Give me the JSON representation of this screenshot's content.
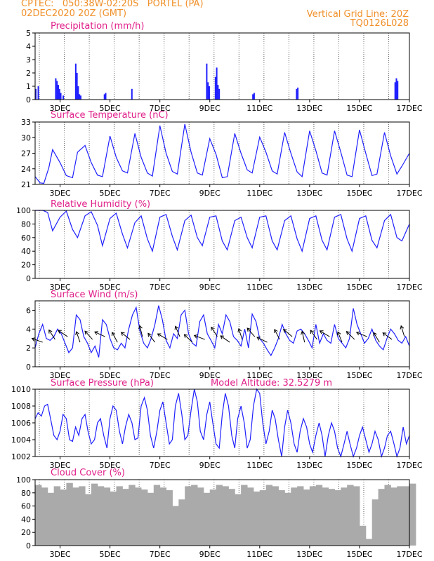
{
  "header": {
    "line1_left": "CPTEC:   050:38W-02:20S   PORTEL (PA)",
    "line2_left": "02DEC2020 20Z (GMT)",
    "line1_right": "Vertical Grid Line: 20Z",
    "line2_right": "TQ0126L028"
  },
  "colors": {
    "header": "#f0902a",
    "title": "#e0208a",
    "series": "#2020ff",
    "cloud": "#aaaaaa",
    "wind_arrow": "#000000"
  },
  "chart_data": [
    {
      "type": "bar",
      "title": "Precipitation (mm/h)",
      "ylim": [
        0,
        5
      ],
      "yticks": [
        "0",
        "1",
        "2",
        "3",
        "4",
        "5"
      ],
      "xticks": [
        "3DEC",
        "5DEC",
        "7DEC",
        "9DEC",
        "11DEC",
        "13DEC",
        "15DEC",
        "17DEC"
      ],
      "x_day_offsets": [
        0.17,
        1.17,
        2.17,
        3.17,
        4.17,
        5.17,
        6.17,
        7.17,
        8.17,
        9.17,
        10.17,
        11.17,
        12.17,
        13.17,
        14.17
      ],
      "x": [
        0.0,
        0.1,
        0.8,
        0.85,
        0.9,
        0.95,
        1.0,
        1.1,
        1.6,
        1.65,
        1.7,
        1.75,
        1.8,
        2.75,
        2.8,
        3.85,
        6.85,
        6.9,
        6.95,
        7.2,
        7.25,
        7.3,
        7.35,
        8.7,
        8.75,
        10.45,
        10.5,
        14.4,
        14.45,
        14.5
      ],
      "values": [
        0.8,
        1.0,
        1.6,
        1.4,
        1.1,
        0.8,
        0.5,
        0.3,
        2.7,
        2.0,
        1.0,
        0.4,
        0.3,
        0.4,
        0.5,
        0.8,
        2.7,
        1.3,
        1.0,
        1.7,
        2.4,
        1.1,
        0.8,
        0.4,
        0.5,
        0.8,
        0.9,
        1.3,
        1.6,
        1.4
      ]
    },
    {
      "type": "line",
      "title": "Surface Temperature (nC)",
      "ylim": [
        21,
        33
      ],
      "yticks": [
        "21",
        "24",
        "27",
        "30",
        "33"
      ],
      "xticks": [
        "3DEC",
        "5DEC",
        "7DEC",
        "9DEC",
        "11DEC",
        "13DEC",
        "15DEC",
        "17DEC"
      ],
      "x_day_offsets": [
        0.17,
        1.17,
        2.17,
        3.17,
        4.17,
        5.17,
        6.17,
        7.17,
        8.17,
        9.17,
        10.17,
        11.17,
        12.17,
        13.17,
        14.17
      ],
      "x": [
        0,
        0.2,
        0.35,
        0.55,
        0.7,
        1.0,
        1.25,
        1.5,
        1.7,
        2.0,
        2.25,
        2.5,
        2.7,
        3.0,
        3.25,
        3.5,
        3.7,
        4.0,
        4.25,
        4.5,
        4.7,
        5.0,
        5.25,
        5.5,
        5.7,
        6.0,
        6.25,
        6.5,
        6.7,
        7.0,
        7.25,
        7.5,
        7.7,
        8.0,
        8.25,
        8.5,
        8.7,
        9.0,
        9.25,
        9.5,
        9.7,
        10.0,
        10.25,
        10.5,
        10.7,
        11.0,
        11.25,
        11.5,
        11.7,
        12.0,
        12.25,
        12.5,
        12.7,
        13.0,
        13.25,
        13.5,
        13.7,
        14.0,
        14.25,
        14.5,
        14.7,
        15.0
      ],
      "values": [
        22.5,
        21.3,
        21.2,
        24.2,
        27.7,
        25.2,
        22.7,
        22.3,
        27.2,
        28.5,
        25.2,
        22.8,
        22.5,
        30.3,
        26.2,
        23.6,
        23.2,
        30.8,
        26.2,
        23.2,
        22.6,
        32.3,
        27.0,
        23.5,
        23.0,
        32.6,
        27.2,
        23.2,
        22.8,
        29.8,
        26.8,
        22.3,
        22.5,
        30.8,
        27.0,
        23.8,
        23.2,
        30.1,
        27.2,
        23.6,
        23.0,
        31.0,
        27.0,
        23.4,
        22.5,
        31.3,
        27.5,
        23.2,
        22.8,
        31.3,
        27.2,
        22.8,
        22.5,
        31.5,
        27.0,
        22.7,
        23.0,
        31.0,
        26.5,
        23.0,
        24.5,
        27.0
      ]
    },
    {
      "type": "line",
      "title": "Relative Humidity (%)",
      "ylim": [
        0,
        100
      ],
      "yticks": [
        "0",
        "20",
        "40",
        "60",
        "80",
        "100"
      ],
      "xticks": [
        "3DEC",
        "5DEC",
        "7DEC",
        "9DEC",
        "11DEC",
        "13DEC",
        "15DEC",
        "17DEC"
      ],
      "x_day_offsets": [
        0.17,
        1.17,
        2.17,
        3.17,
        4.17,
        5.17,
        6.17,
        7.17,
        8.17,
        9.17,
        10.17,
        11.17,
        12.17,
        13.17,
        14.17
      ],
      "x": [
        0,
        0.3,
        0.5,
        0.7,
        1.0,
        1.25,
        1.5,
        1.7,
        2.0,
        2.25,
        2.5,
        2.7,
        3.0,
        3.25,
        3.5,
        3.7,
        4.0,
        4.25,
        4.5,
        4.7,
        5.0,
        5.25,
        5.5,
        5.7,
        6.0,
        6.25,
        6.5,
        6.7,
        7.0,
        7.25,
        7.5,
        7.7,
        8.0,
        8.25,
        8.5,
        8.7,
        9.0,
        9.25,
        9.5,
        9.7,
        10.0,
        10.25,
        10.5,
        10.7,
        11.0,
        11.25,
        11.5,
        11.7,
        12.0,
        12.25,
        12.5,
        12.7,
        13.0,
        13.25,
        13.5,
        13.7,
        14.0,
        14.25,
        14.5,
        14.7,
        15.0
      ],
      "values": [
        100,
        100,
        97,
        70,
        90,
        99,
        72,
        60,
        92,
        98,
        78,
        48,
        88,
        96,
        65,
        45,
        82,
        92,
        58,
        40,
        90,
        94,
        62,
        42,
        85,
        93,
        60,
        48,
        90,
        92,
        55,
        42,
        85,
        90,
        60,
        45,
        90,
        92,
        55,
        42,
        85,
        92,
        58,
        40,
        88,
        92,
        56,
        42,
        90,
        94,
        58,
        40,
        88,
        92,
        56,
        45,
        85,
        94,
        60,
        55,
        80
      ]
    },
    {
      "type": "line",
      "title": "Surface Wind (m/s)",
      "ylim": [
        0,
        7
      ],
      "yticks": [
        "0",
        "2",
        "4",
        "6"
      ],
      "xticks": [
        "3DEC",
        "5DEC",
        "7DEC",
        "9DEC",
        "11DEC",
        "13DEC",
        "15DEC",
        "17DEC"
      ],
      "x_day_offsets": [
        0.17,
        1.17,
        2.17,
        3.17,
        4.17,
        5.17,
        6.17,
        7.17,
        8.17,
        9.17,
        10.17,
        11.17,
        12.17,
        13.17,
        14.17
      ],
      "x": [
        0,
        0.15,
        0.3,
        0.45,
        0.6,
        0.75,
        0.9,
        1.05,
        1.2,
        1.35,
        1.5,
        1.65,
        1.8,
        1.95,
        2.1,
        2.25,
        2.4,
        2.55,
        2.7,
        2.85,
        3.0,
        3.15,
        3.3,
        3.45,
        3.6,
        3.75,
        3.9,
        4.05,
        4.2,
        4.35,
        4.5,
        4.65,
        4.8,
        4.95,
        5.1,
        5.25,
        5.4,
        5.55,
        5.7,
        5.85,
        6.0,
        6.15,
        6.3,
        6.45,
        6.6,
        6.75,
        6.9,
        7.05,
        7.2,
        7.35,
        7.5,
        7.65,
        7.8,
        7.95,
        8.1,
        8.25,
        8.4,
        8.55,
        8.7,
        8.85,
        9.0,
        9.15,
        9.3,
        9.45,
        9.6,
        9.75,
        9.9,
        10.05,
        10.2,
        10.35,
        10.5,
        10.65,
        10.8,
        10.95,
        11.1,
        11.25,
        11.4,
        11.55,
        11.7,
        11.85,
        12.0,
        12.15,
        12.3,
        12.45,
        12.6,
        12.75,
        12.9,
        13.05,
        13.2,
        13.35,
        13.5,
        13.65,
        13.8,
        13.95,
        14.1,
        14.25,
        14.4,
        14.55,
        14.7,
        14.85,
        15.0
      ],
      "values": [
        2.0,
        3.5,
        4.5,
        3.0,
        2.8,
        3.2,
        4.0,
        3.5,
        2.5,
        1.5,
        2.0,
        5.5,
        5.0,
        3.2,
        2.5,
        1.5,
        2.2,
        1.0,
        5.0,
        4.5,
        3.0,
        2.0,
        1.8,
        2.5,
        2.0,
        4.0,
        5.5,
        6.3,
        3.8,
        2.5,
        2.0,
        3.0,
        4.5,
        6.5,
        5.0,
        2.8,
        2.0,
        3.5,
        3.0,
        5.5,
        6.0,
        3.5,
        2.5,
        2.2,
        4.8,
        5.5,
        3.5,
        2.8,
        2.0,
        4.5,
        3.5,
        5.5,
        4.8,
        3.2,
        2.8,
        2.2,
        4.0,
        2.0,
        5.6,
        4.8,
        3.0,
        2.5,
        1.8,
        1.2,
        2.0,
        3.0,
        4.5,
        3.5,
        2.8,
        2.5,
        3.8,
        4.0,
        3.5,
        2.8,
        2.0,
        4.5,
        2.5,
        3.5,
        2.8,
        2.5,
        4.5,
        3.0,
        2.5,
        2.0,
        3.0,
        6.2,
        4.5,
        3.5,
        2.5,
        3.0,
        4.0,
        2.8,
        2.2,
        1.8,
        3.0,
        4.0,
        3.5,
        2.8,
        2.5,
        3.2,
        2.2
      ]
    },
    {
      "type": "line",
      "title": "Surface Pressure (hPa)",
      "subtitle": "Model Altitude: 32.5279 m",
      "ylim": [
        1002,
        1010
      ],
      "yticks": [
        "1002",
        "1004",
        "1006",
        "1008",
        "1010"
      ],
      "xticks": [
        "3DEC",
        "5DEC",
        "7DEC",
        "9DEC",
        "11DEC",
        "13DEC",
        "15DEC",
        "17DEC"
      ],
      "x_day_offsets": [
        0.17,
        1.17,
        2.17,
        3.17,
        4.17,
        5.17,
        6.17,
        7.17,
        8.17,
        9.17,
        10.17,
        11.17,
        12.17,
        13.17,
        14.17
      ],
      "x": [
        0,
        0.12,
        0.25,
        0.38,
        0.5,
        0.62,
        0.75,
        0.88,
        1.0,
        1.12,
        1.25,
        1.38,
        1.5,
        1.62,
        1.75,
        1.88,
        2.0,
        2.12,
        2.25,
        2.38,
        2.5,
        2.62,
        2.75,
        2.88,
        3.0,
        3.12,
        3.25,
        3.38,
        3.5,
        3.62,
        3.75,
        3.88,
        4.0,
        4.12,
        4.25,
        4.38,
        4.5,
        4.62,
        4.75,
        4.88,
        5.0,
        5.12,
        5.25,
        5.38,
        5.5,
        5.62,
        5.75,
        5.88,
        6.0,
        6.12,
        6.25,
        6.38,
        6.5,
        6.62,
        6.75,
        6.88,
        7.0,
        7.12,
        7.25,
        7.38,
        7.5,
        7.62,
        7.75,
        7.88,
        8.0,
        8.12,
        8.25,
        8.38,
        8.5,
        8.62,
        8.75,
        8.88,
        9.0,
        9.12,
        9.25,
        9.38,
        9.5,
        9.62,
        9.75,
        9.88,
        10.0,
        10.12,
        10.25,
        10.38,
        10.5,
        10.62,
        10.75,
        10.88,
        11.0,
        11.12,
        11.25,
        11.38,
        11.5,
        11.62,
        11.75,
        11.88,
        12.0,
        12.12,
        12.25,
        12.38,
        12.5,
        12.62,
        12.75,
        12.88,
        13.0,
        13.12,
        13.25,
        13.38,
        13.5,
        13.62,
        13.75,
        13.88,
        14.0,
        14.12,
        14.25,
        14.38,
        14.5,
        14.62,
        14.75,
        14.88,
        15.0
      ],
      "values": [
        1006.5,
        1007.2,
        1006.8,
        1008.0,
        1008.2,
        1006.5,
        1004.5,
        1004.0,
        1005.0,
        1007.0,
        1006.5,
        1004.0,
        1003.8,
        1005.5,
        1004.5,
        1006.5,
        1007.0,
        1005.0,
        1003.5,
        1004.0,
        1006.0,
        1006.5,
        1004.5,
        1003.0,
        1006.5,
        1008.0,
        1007.5,
        1005.0,
        1003.5,
        1005.5,
        1007.0,
        1006.0,
        1004.0,
        1004.2,
        1008.0,
        1009.0,
        1007.5,
        1004.5,
        1003.0,
        1005.0,
        1007.5,
        1008.5,
        1006.0,
        1003.5,
        1004.0,
        1008.0,
        1009.5,
        1007.0,
        1004.0,
        1004.5,
        1007.5,
        1010.0,
        1008.5,
        1005.0,
        1004.0,
        1007.0,
        1008.5,
        1006.0,
        1003.5,
        1003.0,
        1007.0,
        1009.5,
        1008.0,
        1004.5,
        1003.0,
        1006.5,
        1008.0,
        1006.0,
        1003.0,
        1004.0,
        1008.0,
        1010.0,
        1009.5,
        1006.0,
        1003.5,
        1005.0,
        1007.5,
        1006.5,
        1004.0,
        1002.0,
        1005.5,
        1007.5,
        1006.0,
        1003.5,
        1002.5,
        1005.0,
        1006.5,
        1005.5,
        1003.5,
        1002.5,
        1004.5,
        1006.0,
        1004.5,
        1002.0,
        1004.5,
        1006.0,
        1005.0,
        1003.0,
        1002.0,
        1003.5,
        1005.0,
        1003.5,
        1002.0,
        1003.0,
        1004.5,
        1005.5,
        1004.0,
        1002.5,
        1003.5,
        1005.0,
        1004.0,
        1002.0,
        1003.0,
        1004.5,
        1005.0,
        1003.5,
        1002.0,
        1003.0,
        1005.5,
        1003.5,
        1004.5
      ]
    },
    {
      "type": "bar",
      "title": "Cloud Cover (%)",
      "ylim": [
        0,
        100
      ],
      "yticks": [
        "0",
        "20",
        "40",
        "60",
        "80",
        "100"
      ],
      "xticks": [
        "3DEC",
        "5DEC",
        "7DEC",
        "9DEC",
        "11DEC",
        "13DEC",
        "15DEC",
        "17DEC"
      ],
      "x_day_offsets": [
        0.17,
        1.17,
        2.17,
        3.17,
        4.17,
        5.17,
        6.17,
        7.17,
        8.17,
        9.17,
        10.17,
        11.17,
        12.17,
        13.17,
        14.17
      ],
      "x": [
        0,
        0.25,
        0.5,
        0.75,
        1.0,
        1.25,
        1.5,
        1.75,
        2.0,
        2.25,
        2.5,
        2.75,
        3.0,
        3.25,
        3.5,
        3.75,
        4.0,
        4.25,
        4.5,
        4.75,
        5.0,
        5.25,
        5.5,
        5.75,
        6.0,
        6.25,
        6.5,
        6.75,
        7.0,
        7.25,
        7.5,
        7.75,
        8.0,
        8.25,
        8.5,
        8.75,
        9.0,
        9.25,
        9.5,
        9.75,
        10.0,
        10.25,
        10.5,
        10.75,
        11.0,
        11.25,
        11.5,
        11.75,
        12.0,
        12.25,
        12.5,
        12.75,
        13.0,
        13.25,
        13.5,
        13.75,
        14.0,
        14.25,
        14.5,
        14.75,
        15.0
      ],
      "values": [
        92,
        88,
        80,
        90,
        85,
        95,
        88,
        90,
        78,
        94,
        90,
        88,
        82,
        90,
        86,
        92,
        88,
        85,
        80,
        92,
        88,
        84,
        60,
        70,
        90,
        92,
        88,
        80,
        85,
        92,
        90,
        86,
        78,
        92,
        88,
        82,
        84,
        92,
        90,
        84,
        80,
        88,
        90,
        85,
        90,
        92,
        88,
        86,
        84,
        88,
        92,
        90,
        30,
        10,
        70,
        86,
        92,
        88,
        90,
        90,
        94
      ]
    }
  ]
}
